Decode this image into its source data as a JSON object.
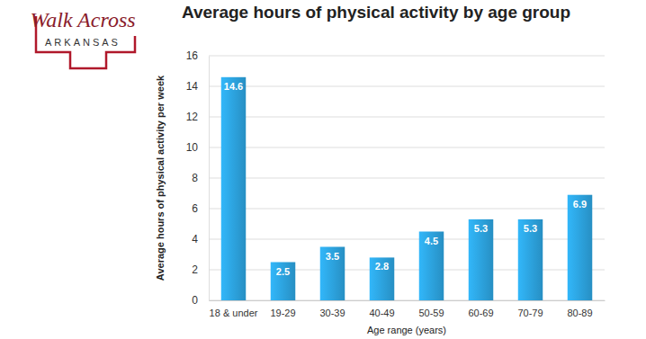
{
  "chart_data": {
    "type": "bar",
    "title": "Average hours of physical activity by age group",
    "annotations": [
      "Walk Across",
      "ARKANSAS"
    ],
    "y_label": "Average hours of physical activity per week",
    "x_label": "Age range (years)",
    "categories": [
      "18 & under",
      "19-29",
      "30-39",
      "40-49",
      "50-59",
      "60-69",
      "70-79",
      "80-89"
    ],
    "values": [
      14.6,
      2.5,
      3.5,
      2.8,
      4.5,
      5.3,
      5.3,
      6.9
    ],
    "color": "#2b9fd9",
    "ylim": [
      0,
      16
    ],
    "yticks": [
      0,
      2,
      4,
      6,
      8,
      10,
      12,
      14,
      16
    ],
    "grid": true,
    "data_labels": true
  }
}
